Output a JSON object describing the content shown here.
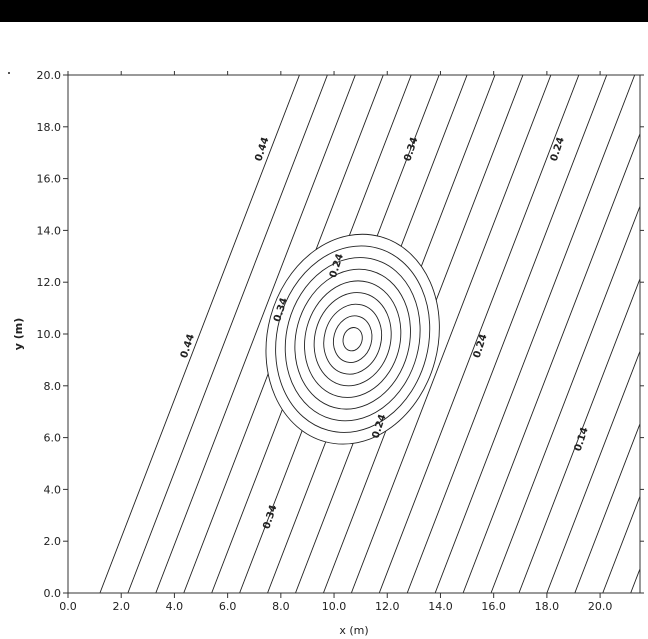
{
  "chart_data": {
    "type": "contour",
    "title": "",
    "xlabel": "x (m)",
    "ylabel": "y (m)",
    "xlim": [
      0,
      21.5
    ],
    "ylim": [
      0,
      20
    ],
    "x_ticks": [
      "0.0",
      "2.0",
      "4.0",
      "6.0",
      "8.0",
      "10.0",
      "12.0",
      "14.0",
      "16.0",
      "18.0",
      "20.0"
    ],
    "y_ticks": [
      "0.0",
      "2.0",
      "4.0",
      "6.0",
      "8.0",
      "10.0",
      "12.0",
      "14.0",
      "16.0",
      "18.0",
      "20.0"
    ],
    "background_field": {
      "description_values": "parallel inclined isolines decreasing toward the right",
      "line_count": 20,
      "bottom_x_start": 1.2,
      "top_x_start": 8.7,
      "spacing_x": 1.05
    },
    "depression": {
      "center": [
        10.7,
        9.8
      ],
      "ring_count": 9,
      "outer_radius_x": 3.2,
      "outer_radius_y": 4.1,
      "tilt_deg": 15
    },
    "contour_labels": [
      {
        "text": "0.44",
        "x": 7.4,
        "y": 17.1
      },
      {
        "text": "0.34",
        "x": 13.0,
        "y": 17.1
      },
      {
        "text": "0.24",
        "x": 18.5,
        "y": 17.1
      },
      {
        "text": "0.24",
        "x": 10.2,
        "y": 12.6
      },
      {
        "text": "0.34",
        "x": 8.1,
        "y": 10.9
      },
      {
        "text": "0.44",
        "x": 4.6,
        "y": 9.5
      },
      {
        "text": "0.24",
        "x": 15.6,
        "y": 9.5
      },
      {
        "text": "0.24",
        "x": 11.8,
        "y": 6.4
      },
      {
        "text": "0.14",
        "x": 19.4,
        "y": 5.9
      },
      {
        "text": "0.34",
        "x": 7.7,
        "y": 2.9
      }
    ]
  }
}
